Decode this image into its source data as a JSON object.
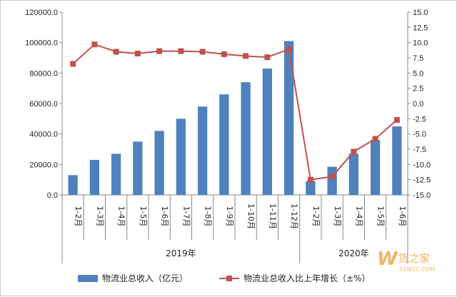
{
  "chart_data": {
    "type": "bar+line",
    "categories": [
      "1-2月",
      "1-3月",
      "1-4月",
      "1-5月",
      "1-6月",
      "1-7月",
      "1-8月",
      "1-9月",
      "1-10月",
      "1-11月",
      "1-12月",
      "1-2月",
      "1-3月",
      "1-4月",
      "1-5月",
      "1-6月"
    ],
    "year_groups": [
      {
        "label": "2019年",
        "start": 0,
        "end": 10
      },
      {
        "label": "2020年",
        "start": 11,
        "end": 15
      }
    ],
    "series": [
      {
        "name": "物流业总收入（亿元）",
        "type": "bar",
        "axis": "left",
        "color": "#4f81bd",
        "values": [
          13000,
          23000,
          27000,
          35000,
          42000,
          50000,
          58000,
          66000,
          74000,
          83000,
          101000,
          9000,
          18500,
          27000,
          36000,
          45000
        ]
      },
      {
        "name": "物流业总收入比上年增长（±%）",
        "type": "line",
        "axis": "right",
        "color": "#c0504d",
        "values": [
          6.5,
          9.7,
          8.5,
          8.2,
          8.6,
          8.6,
          8.5,
          8.1,
          7.8,
          7.6,
          8.9,
          -12.5,
          -12.0,
          -7.9,
          -5.8,
          -2.7
        ]
      }
    ],
    "y_left": {
      "min": 0,
      "max": 120000,
      "step": 20000,
      "tick_labels": [
        "0.0",
        "20000.0",
        "40000.0",
        "60000.0",
        "80000.0",
        "100000.0",
        "120000.0"
      ]
    },
    "y_right": {
      "min": -15,
      "max": 15,
      "step": 2.5,
      "tick_labels": [
        "-15.0",
        "-12.5",
        "-10.0",
        "-7.5",
        "-5.0",
        "-2.5",
        "0.0",
        "2.5",
        "5.0",
        "7.5",
        "10.0",
        "12.5",
        "15.0"
      ]
    },
    "legend_position": "bottom"
  },
  "watermark": {
    "name": "货之家",
    "url": "51W2C.COM"
  }
}
